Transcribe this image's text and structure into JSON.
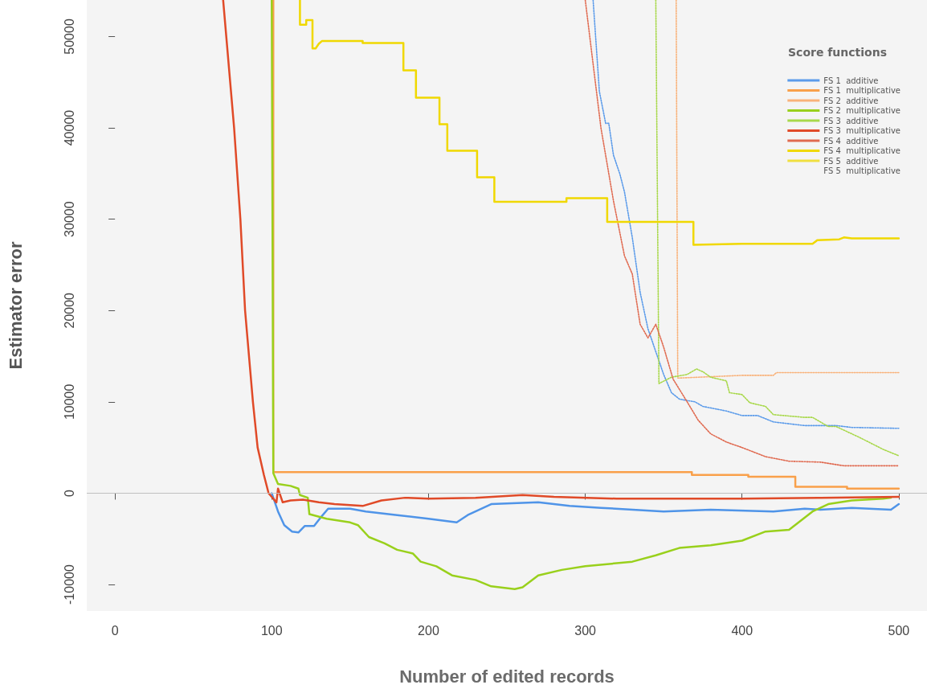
{
  "chart_data": {
    "type": "line",
    "xlabel": "Number of edited records",
    "ylabel": "Estimator error",
    "legend_title": "Score functions",
    "legend": "top right",
    "grid": false,
    "xlim": [
      -18,
      518
    ],
    "ylim": [
      -12900,
      54000
    ],
    "xticks": [
      0,
      100,
      200,
      300,
      400,
      500
    ],
    "yticks": [
      -10000,
      0,
      10000,
      20000,
      30000,
      40000,
      50000
    ],
    "ref_lines": [
      {
        "axis": "y",
        "value": 0,
        "color": "#c0c0c0"
      }
    ],
    "series": [
      {
        "color": "#4f94e8",
        "line_style": "solid",
        "x": [
          100,
          104,
          108,
          113,
          117,
          121,
          127,
          132,
          136,
          150,
          160,
          180,
          200,
          218,
          225,
          240,
          270,
          290,
          310,
          350,
          380,
          420,
          440,
          450,
          470,
          495,
          500
        ],
        "values": [
          0,
          -2000,
          -3500,
          -4200,
          -4300,
          -3600,
          -3600,
          -2500,
          -1700,
          -1700,
          -2000,
          -2400,
          -2800,
          -3200,
          -2400,
          -1200,
          -1000,
          -1400,
          -1600,
          -2000,
          -1800,
          -2000,
          -1700,
          -1800,
          -1600,
          -1800,
          -1200
        ]
      },
      {
        "name": "FS 1  additive",
        "color": "#5b9bea",
        "line_style": "dotted",
        "x": [
          305,
          309,
          313,
          315,
          318,
          322,
          325,
          330,
          335,
          340,
          345,
          350,
          355,
          360,
          370,
          375,
          390,
          400,
          410,
          420,
          440,
          460,
          470,
          500
        ],
        "values": [
          54000,
          44000,
          40500,
          40500,
          37000,
          35000,
          33000,
          28000,
          22000,
          18000,
          15500,
          13000,
          11000,
          10300,
          10000,
          9500,
          9000,
          8500,
          8500,
          7800,
          7400,
          7400,
          7200,
          7100
        ]
      },
      {
        "name": "FS 1  multiplicative",
        "color": "#f9a04a",
        "line_style": "solid",
        "x": [
          101,
          101,
          102,
          368,
          368,
          404,
          404,
          434,
          434,
          467,
          467,
          500
        ],
        "values": [
          54000,
          2300,
          2300,
          2300,
          2000,
          2000,
          1800,
          1800,
          700,
          700,
          500,
          500
        ]
      },
      {
        "name": "FS 2  additive",
        "color": "#f9b27a",
        "line_style": "dotted",
        "x": [
          358,
          359,
          400,
          420,
          422,
          500
        ],
        "values": [
          54000,
          12600,
          12900,
          12900,
          13200,
          13200
        ]
      },
      {
        "name": "FS 2  multiplicative",
        "color": "#99d01c",
        "line_style": "solid",
        "x": [
          100,
          101,
          104,
          112,
          117,
          118,
          123,
          124,
          135,
          150,
          155,
          162,
          172,
          180,
          190,
          195,
          205,
          215,
          230,
          240,
          255,
          260,
          270,
          285,
          300,
          330,
          345,
          360,
          380,
          400,
          415,
          430,
          445,
          455,
          470,
          490,
          495
        ],
        "values": [
          54000,
          2200,
          1000,
          800,
          500,
          -200,
          -500,
          -2300,
          -2800,
          -3200,
          -3500,
          -4800,
          -5500,
          -6200,
          -6600,
          -7500,
          -8000,
          -9000,
          -9500,
          -10200,
          -10500,
          -10300,
          -9000,
          -8400,
          -8000,
          -7500,
          -6800,
          -6000,
          -5700,
          -5200,
          -4200,
          -4000,
          -2000,
          -1200,
          -800,
          -600,
          -500
        ]
      },
      {
        "name": "FS 3  additive",
        "color": "#a8d84a",
        "line_style": "dotted",
        "x": [
          345,
          347,
          355,
          365,
          371,
          375,
          380,
          390,
          392,
          400,
          405,
          415,
          420,
          440,
          445,
          455,
          460,
          475,
          490,
          500
        ],
        "values": [
          54000,
          12000,
          12700,
          13000,
          13600,
          13300,
          12700,
          12300,
          11000,
          10800,
          9900,
          9500,
          8600,
          8300,
          8300,
          7300,
          7300,
          6100,
          4800,
          4100
        ]
      },
      {
        "name": "FS 3  multiplicative",
        "color": "#e04a28",
        "line_style": "solid",
        "x": [
          69,
          71,
          76,
          80,
          83,
          88,
          91,
          95,
          98,
          103,
          104,
          107,
          112,
          120,
          130,
          140,
          158,
          170,
          185,
          200,
          230,
          260,
          280,
          320,
          400,
          450,
          500
        ],
        "values": [
          54000,
          50000,
          40000,
          30000,
          20000,
          10000,
          5000,
          2000,
          0,
          -1000,
          500,
          -1000,
          -800,
          -700,
          -1000,
          -1200,
          -1400,
          -800,
          -500,
          -600,
          -500,
          -200,
          -400,
          -600,
          -600,
          -500,
          -400
        ]
      },
      {
        "name": "FS 4  additive",
        "color": "#e06a50",
        "line_style": "dotted",
        "x": [
          300,
          305,
          310,
          315,
          318,
          325,
          330,
          335,
          340,
          345,
          350,
          356,
          365,
          372,
          380,
          390,
          400,
          415,
          430,
          450,
          465,
          500
        ],
        "values": [
          54000,
          47000,
          40000,
          35000,
          32000,
          26000,
          24000,
          18500,
          17000,
          18500,
          16000,
          12500,
          10000,
          8000,
          6500,
          5600,
          5000,
          4000,
          3500,
          3400,
          3000,
          3000
        ]
      },
      {
        "name": "FS 4  multiplicative",
        "color": "#f0d800",
        "line_style": "solid",
        "x": [
          118,
          118,
          122,
          122,
          126,
          126,
          128,
          130,
          132,
          158,
          158,
          184,
          184,
          192,
          192,
          207,
          207,
          212,
          212,
          231,
          231,
          242,
          242,
          288,
          288,
          314,
          314,
          369,
          369,
          400,
          445,
          448,
          462,
          465,
          470,
          500
        ],
        "values": [
          54000,
          51300,
          51300,
          51800,
          51800,
          48700,
          48700,
          49200,
          49500,
          49500,
          49300,
          49300,
          46300,
          46300,
          43300,
          43300,
          40400,
          40400,
          37500,
          37500,
          34600,
          34600,
          31900,
          31900,
          32300,
          32300,
          29700,
          29700,
          27200,
          27300,
          27300,
          27700,
          27800,
          28000,
          27900,
          27900
        ]
      },
      {
        "name": "FS 5  additive",
        "color": "#f0e040",
        "line_style": "dotted"
      },
      {
        "name": "FS 5  multiplicative",
        "line_style": "solid"
      }
    ]
  }
}
